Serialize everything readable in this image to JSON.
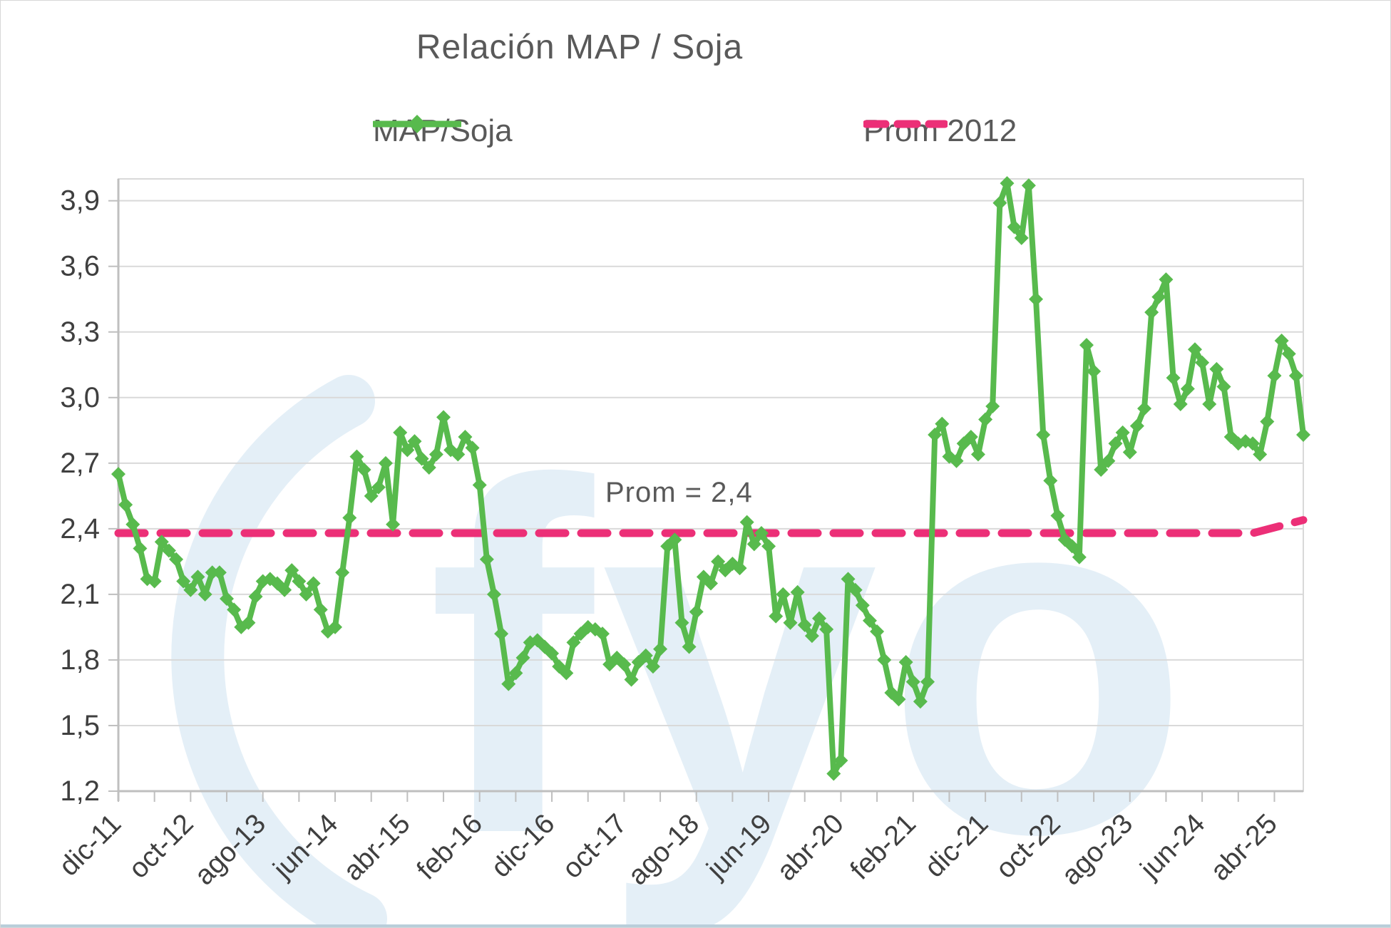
{
  "title": "Relación MAP / Soja",
  "legend": {
    "items": [
      {
        "label": "MAP/Soja",
        "color": "#58BA4D",
        "swatch": "line-with-diamond-marker"
      },
      {
        "label": "Prom 2012",
        "color": "#EC2F77",
        "swatch": "dashed-line"
      }
    ]
  },
  "annotation": {
    "text": "Prom = 2,4"
  },
  "watermark": {
    "text": "fyo"
  },
  "colors": {
    "series_green": "#58BA4D",
    "prom_pink": "#EC2F77",
    "title_gray": "#595959",
    "axis_text": "#3F3F3F",
    "gridline": "#D9D9D9",
    "axis_line": "#BFBFBF",
    "watermark_blue": "#E4EFF7",
    "bottom_strip": "#B9CEDA"
  },
  "chart_data": {
    "type": "line",
    "title": "Relación MAP / Soja",
    "x_start": "dic-11",
    "x_frequency": "monthly",
    "x_tick_every_months": 10,
    "x_tick_labels": [
      "dic-11",
      "oct-12",
      "ago-13",
      "jun-14",
      "abr-15",
      "feb-16",
      "dic-16",
      "oct-17",
      "ago-18",
      "jun-19",
      "abr-20",
      "feb-21",
      "dic-21",
      "oct-22",
      "ago-23",
      "jun-24",
      "abr-25"
    ],
    "y_tick_labels": [
      "1,2",
      "1,5",
      "1,8",
      "2,1",
      "2,4",
      "2,7",
      "3,0",
      "3,3",
      "3,6",
      "3,9"
    ],
    "ylim": [
      1.2,
      4.0
    ],
    "y_step": 0.3,
    "grid": "horizontal",
    "legend_position": "top",
    "series": [
      {
        "name": "MAP/Soja",
        "marker": "diamond",
        "values": [
          2.65,
          2.51,
          2.42,
          2.31,
          2.17,
          2.16,
          2.34,
          2.3,
          2.26,
          2.16,
          2.12,
          2.18,
          2.1,
          2.2,
          2.2,
          2.08,
          2.03,
          1.95,
          1.97,
          2.09,
          2.16,
          2.17,
          2.15,
          2.12,
          2.21,
          2.16,
          2.1,
          2.15,
          2.03,
          1.93,
          1.95,
          2.2,
          2.45,
          2.73,
          2.67,
          2.55,
          2.59,
          2.7,
          2.42,
          2.84,
          2.76,
          2.8,
          2.72,
          2.68,
          2.74,
          2.91,
          2.76,
          2.74,
          2.82,
          2.77,
          2.6,
          2.26,
          2.1,
          1.92,
          1.69,
          1.74,
          1.81,
          1.88,
          1.89,
          1.86,
          1.83,
          1.77,
          1.74,
          1.88,
          1.92,
          1.95,
          1.94,
          1.92,
          1.78,
          1.81,
          1.78,
          1.71,
          1.79,
          1.82,
          1.77,
          1.85,
          2.32,
          2.35,
          1.97,
          1.86,
          2.02,
          2.18,
          2.15,
          2.25,
          2.21,
          2.24,
          2.22,
          2.43,
          2.33,
          2.38,
          2.32,
          2.0,
          2.1,
          1.97,
          2.11,
          1.96,
          1.91,
          1.99,
          1.94,
          1.28,
          1.34,
          2.17,
          2.12,
          2.05,
          1.98,
          1.93,
          1.8,
          1.65,
          1.62,
          1.79,
          1.7,
          1.61,
          1.7,
          2.83,
          2.88,
          2.73,
          2.71,
          2.79,
          2.82,
          2.74,
          2.9,
          2.96,
          3.89,
          3.98,
          3.78,
          3.73,
          3.97,
          3.45,
          2.83,
          2.62,
          2.46,
          2.35,
          2.32,
          2.27,
          3.24,
          3.12,
          2.67,
          2.71,
          2.79,
          2.84,
          2.75,
          2.87,
          2.95,
          3.39,
          3.46,
          3.54,
          3.09,
          2.97,
          3.04,
          3.22,
          3.16,
          2.97,
          3.13,
          3.05,
          2.82,
          2.79,
          2.8,
          2.79,
          2.74,
          2.89,
          3.1,
          3.26,
          3.2,
          3.1,
          2.83
        ]
      },
      {
        "name": "Prom 2012",
        "style": "dashed",
        "breakpoints_month_value": [
          [
            0,
            2.38
          ],
          [
            157,
            2.38
          ],
          [
            164,
            2.44
          ]
        ]
      }
    ],
    "annotations": [
      {
        "text": "Prom = 2,4",
        "month_index": 68,
        "value": 2.52
      }
    ]
  }
}
